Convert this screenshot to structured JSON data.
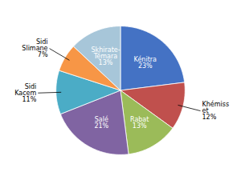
{
  "chart_data": {
    "type": "pie",
    "categories": [
      "Kénitra",
      "Khémiss\net",
      "Rabat",
      "Salé",
      "Sidi\nKacem",
      "Sidi\nSlimane",
      "Skhirate-\nTémara"
    ],
    "values": [
      23,
      12,
      13,
      21,
      11,
      7,
      13
    ],
    "value_labels": [
      "23%",
      "12%",
      "13%",
      "21%",
      "11%",
      "7%",
      "13%"
    ],
    "colors": [
      "#4472C4",
      "#C0504D",
      "#9BBB59",
      "#8064A2",
      "#4BACC6",
      "#F79646",
      "#A7C6D9"
    ],
    "data_labels": true
  }
}
